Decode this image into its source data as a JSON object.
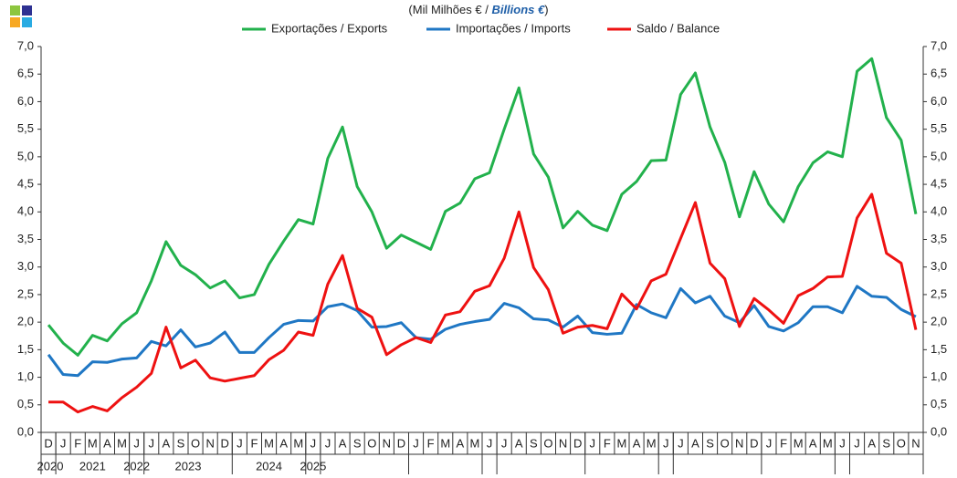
{
  "chart_data": {
    "type": "line",
    "title": [
      "(Mil Milhões  € / ",
      "Billions €",
      ")"
    ],
    "categories": [
      "D",
      "J",
      "F",
      "M",
      "A",
      "M",
      "J",
      "J",
      "A",
      "S",
      "O",
      "N",
      "D",
      "J",
      "F",
      "M",
      "A",
      "M",
      "J",
      "J",
      "A",
      "S",
      "O",
      "N",
      "D",
      "J",
      "F",
      "M",
      "A",
      "M",
      "J",
      "J",
      "A",
      "S",
      "O",
      "N",
      "D",
      "J",
      "F",
      "M",
      "A",
      "M",
      "J",
      "J",
      "A",
      "S",
      "O",
      "N",
      "D",
      "J",
      "F",
      "M",
      "A",
      "M",
      "J",
      "J",
      "A",
      "S",
      "O",
      "N"
    ],
    "groups": [
      "2020",
      "2021",
      "2022",
      "2023",
      "2024",
      "2025"
    ],
    "series": [
      {
        "name": "Exportações / Exports",
        "color": "#22b14c",
        "values": [
          1.95,
          1.62,
          1.4,
          1.76,
          1.66,
          1.97,
          2.17,
          2.75,
          3.46,
          3.03,
          2.86,
          2.62,
          2.75,
          2.44,
          2.5,
          3.05,
          3.47,
          3.86,
          3.78,
          4.97,
          5.54,
          4.46,
          4.0,
          3.34,
          3.58,
          3.45,
          3.32,
          4.01,
          4.16,
          4.6,
          4.71,
          5.5,
          6.25,
          5.05,
          4.63,
          3.71,
          4.01,
          3.76,
          3.66,
          4.32,
          4.55,
          4.93,
          4.94,
          6.13,
          6.52,
          5.54,
          4.9,
          3.91,
          4.73,
          4.14,
          3.82,
          4.46,
          4.89,
          5.09,
          5.0,
          6.55,
          6.78,
          5.71,
          5.3,
          3.96
        ]
      },
      {
        "name": "Importações / Imports",
        "color": "#1f77c4",
        "values": [
          1.41,
          1.05,
          1.03,
          1.28,
          1.27,
          1.33,
          1.35,
          1.65,
          1.57,
          1.86,
          1.55,
          1.62,
          1.82,
          1.45,
          1.45,
          1.72,
          1.96,
          2.03,
          2.02,
          2.28,
          2.33,
          2.21,
          1.91,
          1.92,
          1.99,
          1.72,
          1.69,
          1.87,
          1.96,
          2.01,
          2.05,
          2.34,
          2.26,
          2.06,
          2.04,
          1.91,
          2.11,
          1.81,
          1.78,
          1.8,
          2.32,
          2.17,
          2.08,
          2.61,
          2.35,
          2.47,
          2.11,
          1.99,
          2.3,
          1.92,
          1.84,
          1.99,
          2.28,
          2.28,
          2.17,
          2.65,
          2.47,
          2.45,
          2.23,
          2.1
        ]
      },
      {
        "name": "Saldo / Balance",
        "color": "#ee1111",
        "values": [
          0.55,
          0.55,
          0.37,
          0.47,
          0.39,
          0.63,
          0.82,
          1.07,
          1.91,
          1.17,
          1.31,
          0.99,
          0.93,
          0.98,
          1.03,
          1.32,
          1.49,
          1.82,
          1.76,
          2.69,
          3.21,
          2.25,
          2.09,
          1.41,
          1.59,
          1.72,
          1.63,
          2.13,
          2.19,
          2.56,
          2.66,
          3.16,
          4.0,
          2.99,
          2.59,
          1.8,
          1.91,
          1.94,
          1.88,
          2.51,
          2.24,
          2.75,
          2.87,
          3.52,
          4.17,
          3.07,
          2.79,
          1.92,
          2.43,
          2.22,
          1.98,
          2.48,
          2.61,
          2.82,
          2.83,
          3.89,
          4.32,
          3.25,
          3.07,
          1.86
        ]
      }
    ],
    "ylim": [
      0,
      7
    ],
    "yticks": [
      {
        "value": 0,
        "label": "0,0"
      },
      {
        "value": 0.5,
        "label": "0,5"
      },
      {
        "value": 1,
        "label": "1,0"
      },
      {
        "value": 1.5,
        "label": "1,5"
      },
      {
        "value": 2,
        "label": "2,0"
      },
      {
        "value": 2.5,
        "label": "2,5"
      },
      {
        "value": 3,
        "label": "3,0"
      },
      {
        "value": 3.5,
        "label": "3,5"
      },
      {
        "value": 4,
        "label": "4,0"
      },
      {
        "value": 4.5,
        "label": "4,5"
      },
      {
        "value": 5,
        "label": "5,0"
      },
      {
        "value": 5.5,
        "label": "5,5"
      },
      {
        "value": 6,
        "label": "6,0"
      },
      {
        "value": 6.5,
        "label": "6,5"
      },
      {
        "value": 7,
        "label": "7,0"
      }
    ],
    "y2lim": [
      0,
      7
    ],
    "y2ticks": [
      {
        "value": 0,
        "label": "0,0"
      },
      {
        "value": 0.5,
        "label": "0,5"
      },
      {
        "value": 1,
        "label": "1,0"
      },
      {
        "value": 1.5,
        "label": "1,5"
      },
      {
        "value": 2,
        "label": "2,0"
      },
      {
        "value": 2.5,
        "label": "2,5"
      },
      {
        "value": 3,
        "label": "3,0"
      },
      {
        "value": 3.5,
        "label": "3,5"
      },
      {
        "value": 4,
        "label": "4,0"
      },
      {
        "value": 4.5,
        "label": "4,5"
      },
      {
        "value": 5,
        "label": "5,0"
      },
      {
        "value": 5.5,
        "label": "5,5"
      },
      {
        "value": 6,
        "label": "6,0"
      },
      {
        "value": 6.5,
        "label": "6,5"
      },
      {
        "value": 7,
        "label": "7,0"
      }
    ],
    "grid": false
  }
}
